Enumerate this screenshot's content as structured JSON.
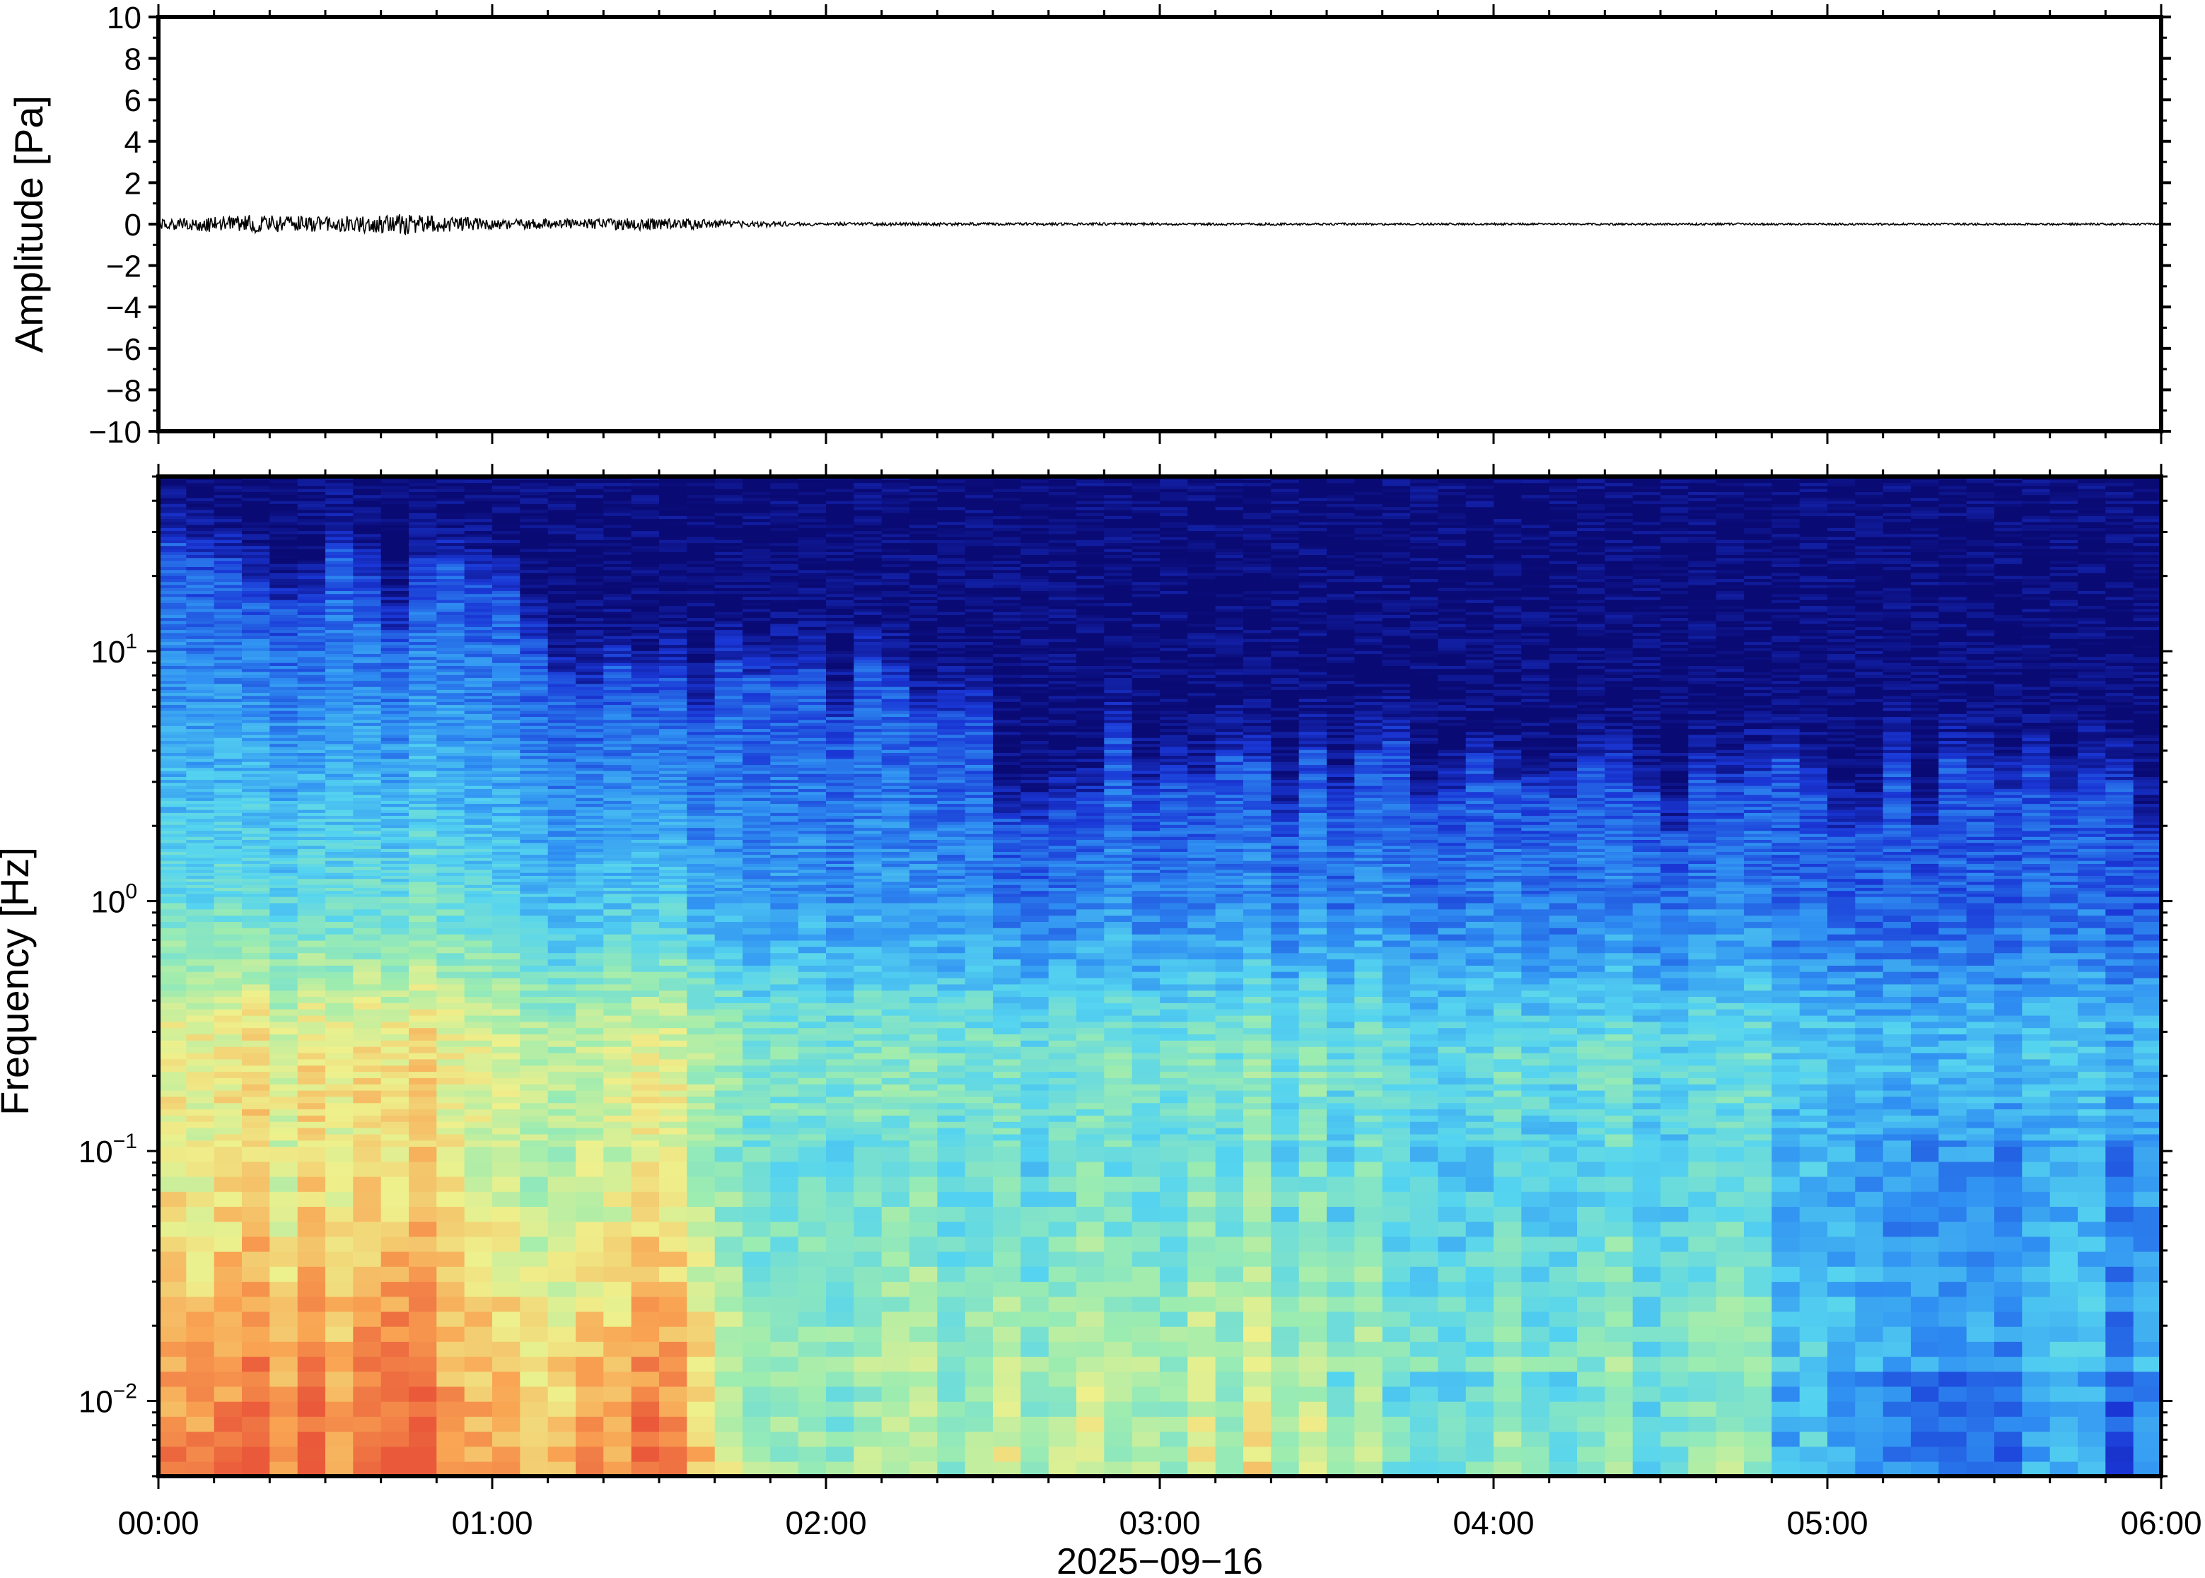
{
  "chart_data": [
    {
      "type": "line",
      "ylabel": "Amplitude [Pa]",
      "ylim": [
        -10,
        10
      ],
      "yticks": [
        10,
        8,
        6,
        4,
        2,
        0,
        -2,
        -4,
        -6,
        -8,
        -10
      ],
      "ytick_labels": [
        "10",
        "8",
        "6",
        "4",
        "2",
        "0",
        "−2",
        "−4",
        "−6",
        "−8",
        "−10"
      ],
      "x_shared_with": "spectrogram",
      "series": [
        {
          "color": "#000000",
          "envelope_hours": [
            0.0,
            0.25,
            0.5,
            0.75,
            1.0,
            1.25,
            1.5,
            1.75,
            2.0,
            3.0,
            4.0,
            5.0,
            6.0
          ],
          "envelope_pa": [
            0.25,
            0.45,
            0.35,
            0.5,
            0.25,
            0.25,
            0.3,
            0.15,
            0.08,
            0.06,
            0.05,
            0.05,
            0.05
          ]
        }
      ]
    },
    {
      "type": "heatmap",
      "ylabel": "Frequency [Hz]",
      "yscale": "log",
      "ylim_hz": [
        0.005,
        50
      ],
      "yticks_hz": [
        0.01,
        0.1,
        1,
        10
      ],
      "ytick_labels": [
        {
          "base": "10",
          "exp": "−2"
        },
        {
          "base": "10",
          "exp": "−1"
        },
        {
          "base": "10",
          "exp": "0"
        },
        {
          "base": "10",
          "exp": "1"
        }
      ],
      "xlim_hours": [
        0,
        6
      ],
      "xticks_hours": [
        0,
        1,
        2,
        3,
        4,
        5,
        6
      ],
      "xtick_labels": [
        "00:00",
        "01:00",
        "02:00",
        "03:00",
        "04:00",
        "05:00",
        "06:00"
      ],
      "xlabel": "2025−09−16",
      "colormap": [
        "#0a0a75",
        "#1a37d6",
        "#2f8ff2",
        "#55d4f0",
        "#9cecb0",
        "#eef08c",
        "#f9a553",
        "#ea5a3a"
      ],
      "columns_per_hour": 12,
      "noise_floor_profile": {
        "hours": [
          0.0,
          0.5,
          1.0,
          1.25,
          1.6,
          2.0,
          2.45,
          2.5,
          3.0,
          3.5,
          4.0,
          4.5,
          5.0,
          5.5,
          6.0
        ],
        "max_hz": [
          25,
          22,
          15,
          8,
          8,
          7,
          6,
          3,
          4,
          3,
          3.5,
          3,
          2.8,
          3,
          2.5
        ]
      },
      "low_frequency_energy": {
        "hours": [
          0.0,
          0.5,
          0.8,
          1.0,
          1.5,
          1.7,
          2.0,
          3.0,
          3.3,
          4.0,
          4.8,
          4.9,
          5.5,
          6.0
        ],
        "level": [
          0.85,
          0.9,
          0.92,
          0.8,
          0.85,
          0.65,
          0.55,
          0.6,
          0.62,
          0.5,
          0.55,
          0.35,
          0.32,
          0.3
        ]
      }
    }
  ]
}
